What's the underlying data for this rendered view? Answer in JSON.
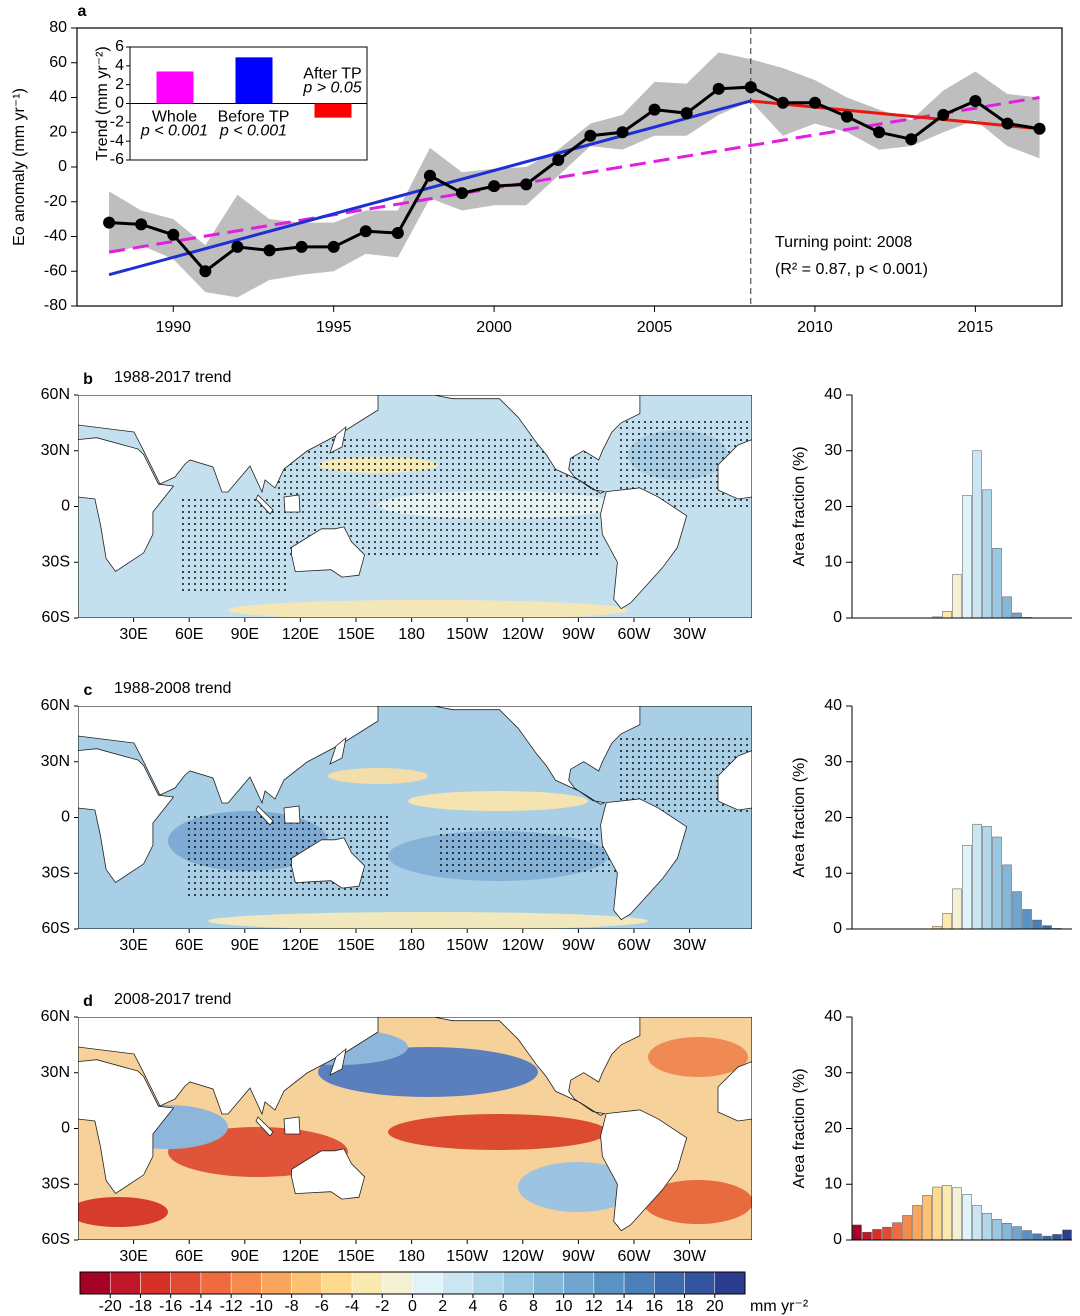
{
  "chart_data": [
    {
      "type": "line",
      "label": "a",
      "ylabel": "Eo anomaly (mm yr⁻¹)",
      "x": [
        1988,
        1989,
        1990,
        1991,
        1992,
        1993,
        1994,
        1995,
        1996,
        1997,
        1998,
        1999,
        2000,
        2001,
        2002,
        2003,
        2004,
        2005,
        2006,
        2007,
        2008,
        2009,
        2010,
        2011,
        2012,
        2013,
        2014,
        2015,
        2016,
        2017
      ],
      "values": [
        -32,
        -33,
        -39,
        -60,
        -46,
        -48,
        -46,
        -46,
        -37,
        -38,
        -5,
        -15,
        -11,
        -10,
        4,
        18,
        20,
        33,
        31,
        45,
        46,
        37,
        37,
        29,
        20,
        16,
        30,
        38,
        25,
        22
      ],
      "color": "#000000",
      "band": {
        "color": "#bebebe",
        "upper": [
          -14,
          -25,
          -30,
          -45,
          -16,
          -30,
          -32,
          -32,
          -25,
          -25,
          11,
          -3,
          -1,
          0,
          10,
          25,
          30,
          49,
          48,
          66,
          62,
          57,
          50,
          40,
          33,
          27,
          44,
          55,
          42,
          40
        ],
        "lower": [
          -50,
          -45,
          -53,
          -72,
          -75,
          -65,
          -62,
          -60,
          -50,
          -52,
          -18,
          -25,
          -22,
          -22,
          -5,
          12,
          10,
          18,
          18,
          30,
          38,
          18,
          25,
          20,
          10,
          12,
          20,
          27,
          12,
          5
        ]
      },
      "trends": [
        {
          "x": [
            1988,
            2017
          ],
          "values": [
            -49,
            40
          ],
          "color": "#e020e0",
          "dash": true
        },
        {
          "x": [
            1988,
            2008
          ],
          "values": [
            -62,
            38
          ],
          "color": "#1f2fd6",
          "dash": false
        },
        {
          "x": [
            2008,
            2017
          ],
          "values": [
            38,
            22
          ],
          "color": "#e8180f",
          "dash": false
        }
      ],
      "turning_point": 2008,
      "annotations": [
        "Turning point: 2008",
        "(R² = 0.87, p < 0.001)"
      ],
      "xlim": [
        1987,
        2017.7
      ],
      "xticks": [
        1990,
        1995,
        2000,
        2005,
        2010,
        2015
      ],
      "ylim": [
        -80,
        80
      ],
      "yticks": [
        -80,
        -60,
        -40,
        -20,
        0,
        20,
        40,
        60,
        80
      ],
      "inset": {
        "categories": [
          "Whole",
          "Before TP",
          "After TP"
        ],
        "values": [
          3.4,
          4.9,
          -1.5
        ],
        "colors": [
          "#ff00ff",
          "#0000ff",
          "#ff0000"
        ],
        "notes": [
          "p < 0.001",
          "p < 0.001",
          "p > 0.05"
        ],
        "ylabel": "Trend (mm yr⁻²)",
        "ylim": [
          -6,
          6
        ],
        "yticks": [
          -6,
          -4,
          -2,
          0,
          2,
          4,
          6
        ]
      }
    },
    {
      "type": "bar",
      "ylabel": "Area fraction (%)",
      "values": [
        0,
        0,
        0,
        0,
        0,
        0,
        0,
        0,
        0.2,
        1.2,
        7.8,
        22,
        30,
        23,
        12.5,
        3.8,
        0.9,
        0.1,
        0,
        0,
        0,
        0
      ],
      "ylim": [
        0,
        40
      ],
      "yticks": [
        0,
        10,
        20,
        30,
        40
      ]
    },
    {
      "type": "bar",
      "ylabel": "Area fraction (%)",
      "values": [
        0,
        0,
        0,
        0,
        0,
        0,
        0,
        0,
        0.5,
        2.8,
        7.2,
        15,
        18.8,
        18.4,
        16.5,
        11.5,
        6.7,
        3.5,
        1.6,
        0.6,
        0.1,
        0
      ],
      "ylim": [
        0,
        40
      ],
      "yticks": [
        0,
        10,
        20,
        30,
        40
      ]
    },
    {
      "type": "bar",
      "ylabel": "Area fraction (%)",
      "values": [
        2.7,
        1.4,
        1.9,
        2.3,
        3.1,
        4.4,
        6.2,
        8,
        9.5,
        9.8,
        9.4,
        8.2,
        6.2,
        4.8,
        3.7,
        3,
        2.4,
        1.7,
        1.1,
        0.7,
        1.0,
        1.8
      ],
      "ylim": [
        0,
        40
      ],
      "yticks": [
        0,
        10,
        20,
        30,
        40
      ]
    }
  ],
  "maps": [
    {
      "label": "b",
      "title": "1988-2017 trend"
    },
    {
      "label": "c",
      "title": "1988-2008 trend"
    },
    {
      "label": "d",
      "title": "2008-2017 trend"
    }
  ],
  "map_axes": {
    "lat": [
      "60N",
      "30N",
      "0",
      "30S",
      "60S"
    ],
    "lon": [
      "30E",
      "60E",
      "90E",
      "120E",
      "150E",
      "180",
      "150W",
      "120W",
      "90W",
      "60W",
      "30W"
    ]
  },
  "colorbar": {
    "unit": "mm yr⁻²",
    "lim": [
      -22,
      22
    ],
    "ticks": [
      -20,
      -18,
      -16,
      -14,
      -12,
      -10,
      -8,
      -6,
      -4,
      -2,
      0,
      2,
      4,
      6,
      8,
      10,
      12,
      14,
      16,
      18,
      20
    ],
    "colors": [
      "#a50026",
      "#c0162a",
      "#d73027",
      "#e34a33",
      "#ef6b3f",
      "#f68a4d",
      "#faa75e",
      "#fdc173",
      "#fed98e",
      "#faeab0",
      "#f3f1d2",
      "#e0f3f8",
      "#c9e6f2",
      "#b1d7ea",
      "#9ac7e2",
      "#85b7d8",
      "#6fa5cf",
      "#5a92c4",
      "#4a7fb9",
      "#3e6aad",
      "#3454a0",
      "#2b3d8f"
    ]
  }
}
